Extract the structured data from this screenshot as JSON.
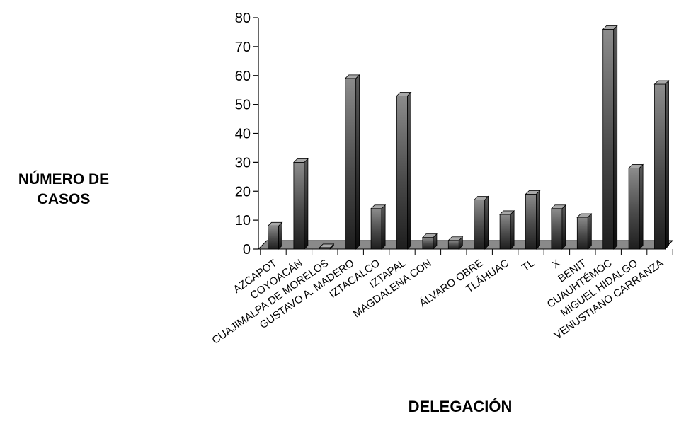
{
  "chart_data": {
    "type": "bar",
    "xlabel": "DELEGACIÓN",
    "ylabel": "NÚMERO DE CASOS",
    "ylim": [
      0,
      80
    ],
    "yticks": [
      0,
      10,
      20,
      30,
      40,
      50,
      60,
      70,
      80
    ],
    "grid": false,
    "legend": "none",
    "style": "3d-column",
    "categories": [
      "AZCAPOT",
      "COYOACÁN",
      "CUAJIMALPA DE MORELOS",
      "GUSTAVO A. MADERO",
      "IZTACALCO",
      "IZTAPAL",
      "MAGDALENA CON",
      "",
      "ÁLVARO OBRE",
      "TLÁHUAC",
      "TL",
      "X",
      "BENIT",
      "CUAUHTÉMOC",
      "MIGUEL HIDALGO",
      "VENUSTIANO CARRANZA"
    ],
    "values": [
      8,
      30,
      0.5,
      59,
      14,
      53,
      4,
      3,
      17,
      12,
      19,
      14,
      11,
      76,
      28,
      57
    ],
    "colors": {
      "bar_light": "#8c8c8c",
      "bar_dark": "#1e1e1e",
      "floor": "#8a8a8a",
      "axis": "#000000"
    }
  }
}
